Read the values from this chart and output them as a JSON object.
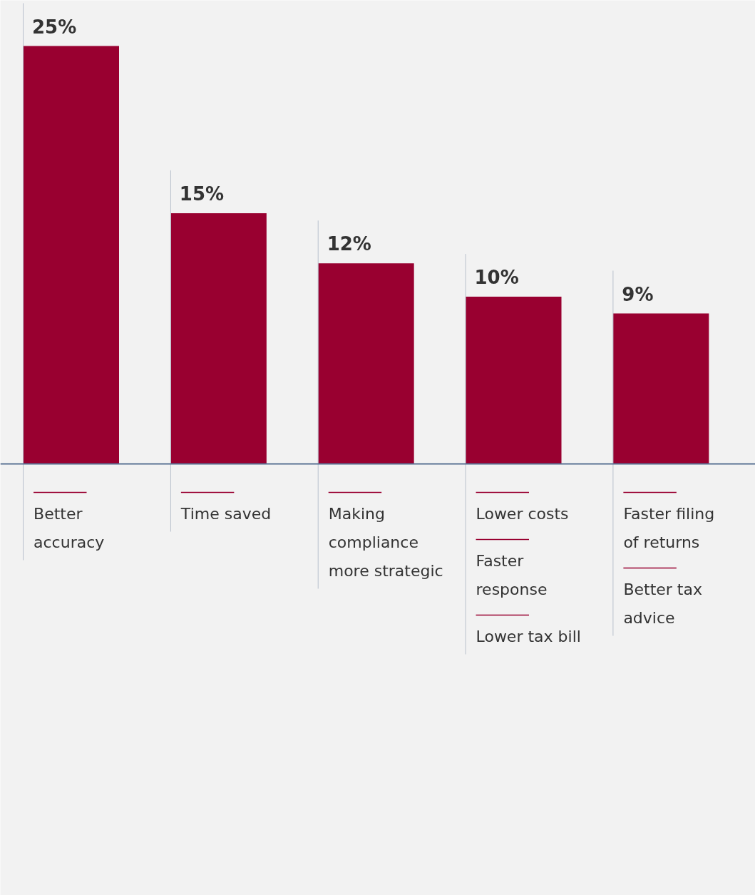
{
  "chart_data": {
    "type": "bar",
    "categories": [
      "Better accuracy",
      "Time saved",
      "Making compliance more strategic",
      "Lower costs\nFaster response\nLower tax bill",
      "Faster filing of returns\nBetter tax advice"
    ],
    "values": [
      25,
      15,
      12,
      10,
      9
    ],
    "value_labels": [
      "25%",
      "15%",
      "12%",
      "10%",
      "9%"
    ],
    "color": "#990030"
  }
}
